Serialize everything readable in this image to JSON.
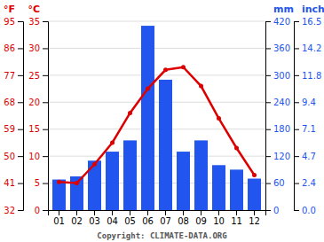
{
  "chart_data": {
    "type": "bar",
    "categories": [
      "01",
      "02",
      "03",
      "04",
      "05",
      "06",
      "07",
      "08",
      "09",
      "10",
      "11",
      "12"
    ],
    "series": [
      {
        "type": "bar",
        "axis": "y2",
        "color": "#2255ee",
        "values": [
          68,
          75,
          110,
          130,
          155,
          410,
          290,
          130,
          155,
          100,
          90,
          70
        ]
      },
      {
        "type": "line",
        "color": "#dd0000",
        "marker": "circle",
        "values": [
          5.2,
          5.0,
          8.5,
          12.5,
          18.0,
          22.5,
          26.0,
          26.5,
          23.0,
          17.0,
          11.5,
          6.5
        ]
      }
    ],
    "ylabel": "°C",
    "ylim": [
      0,
      35
    ],
    "yticks": [
      0,
      5,
      10,
      15,
      20,
      25,
      30,
      35
    ],
    "y2label": "mm",
    "y2lim": [
      0,
      420
    ],
    "y2ticks": [
      0,
      60,
      120,
      180,
      240,
      300,
      360,
      420
    ],
    "y3label": "°F",
    "y3lim": [
      32,
      95
    ],
    "y3ticks": [
      32,
      41,
      50,
      59,
      68,
      77,
      86,
      95
    ],
    "y4label": "inch",
    "y4ticks": [
      {
        "value": 0,
        "label": "0.0"
      },
      {
        "value": 60,
        "label": "2.4"
      },
      {
        "value": 120,
        "label": "4.7"
      },
      {
        "value": 180,
        "label": "7.1"
      },
      {
        "value": 240,
        "label": "9.4"
      },
      {
        "value": 300,
        "label": "11.8"
      },
      {
        "value": 360,
        "label": "14.2"
      },
      {
        "value": 420,
        "label": "16.5"
      }
    ],
    "grid": true,
    "annotations": [
      "Copyright: CLIMATE-DATA.ORG"
    ]
  }
}
